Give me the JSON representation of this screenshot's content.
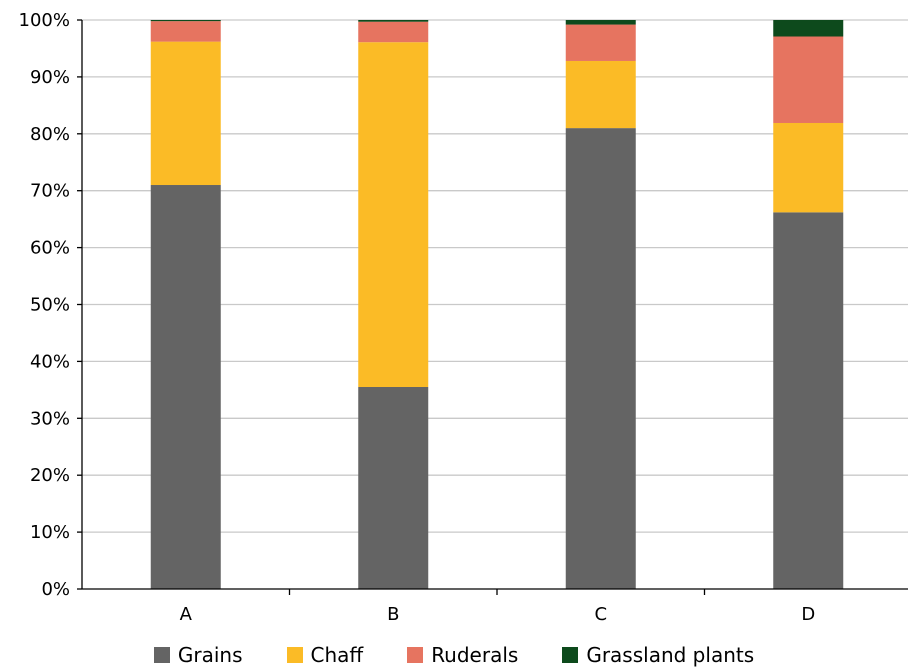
{
  "chart_data": {
    "type": "bar",
    "stacked": true,
    "percent": true,
    "categories": [
      "A",
      "B",
      "C",
      "D"
    ],
    "series": [
      {
        "name": "Grains",
        "color": "#646464",
        "values": [
          71,
          35.5,
          81,
          66.2
        ]
      },
      {
        "name": "Chaff",
        "color": "#FBBB26",
        "values": [
          25.2,
          60.6,
          11.8,
          15.7
        ]
      },
      {
        "name": "Ruderals",
        "color": "#E67460",
        "values": [
          3.6,
          3.6,
          6.4,
          15.2
        ]
      },
      {
        "name": "Grassland plants",
        "color": "#0D4A1C",
        "values": [
          0.2,
          0.3,
          0.8,
          2.9
        ]
      }
    ],
    "yticks": [
      "0%",
      "10%",
      "20%",
      "30%",
      "40%",
      "50%",
      "60%",
      "70%",
      "80%",
      "90%",
      "100%"
    ],
    "ylim": [
      0,
      100
    ],
    "grid": true,
    "legend_position": "bottom",
    "title": "",
    "xlabel": "",
    "ylabel": ""
  }
}
